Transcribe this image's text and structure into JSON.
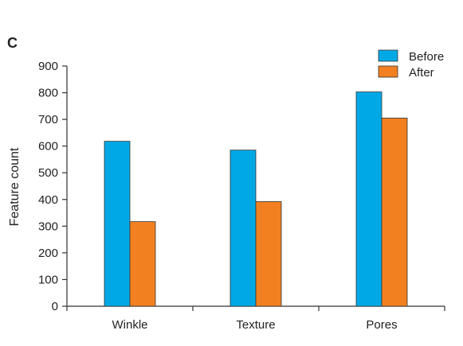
{
  "panel_label": "C",
  "chart_data": {
    "type": "bar",
    "title": "",
    "xlabel": "",
    "ylabel": "Feature count",
    "categories": [
      "Winkle",
      "Texture",
      "Pores"
    ],
    "series": [
      {
        "name": "Before",
        "color": "#00a9e6",
        "values": [
          618,
          585,
          803
        ]
      },
      {
        "name": "After",
        "color": "#f28020",
        "values": [
          317,
          392,
          705
        ]
      }
    ],
    "ylim": [
      0,
      900
    ],
    "yticks": [
      0,
      100,
      200,
      300,
      400,
      500,
      600,
      700,
      800,
      900
    ],
    "grid": false,
    "legend_position": "top-right"
  }
}
